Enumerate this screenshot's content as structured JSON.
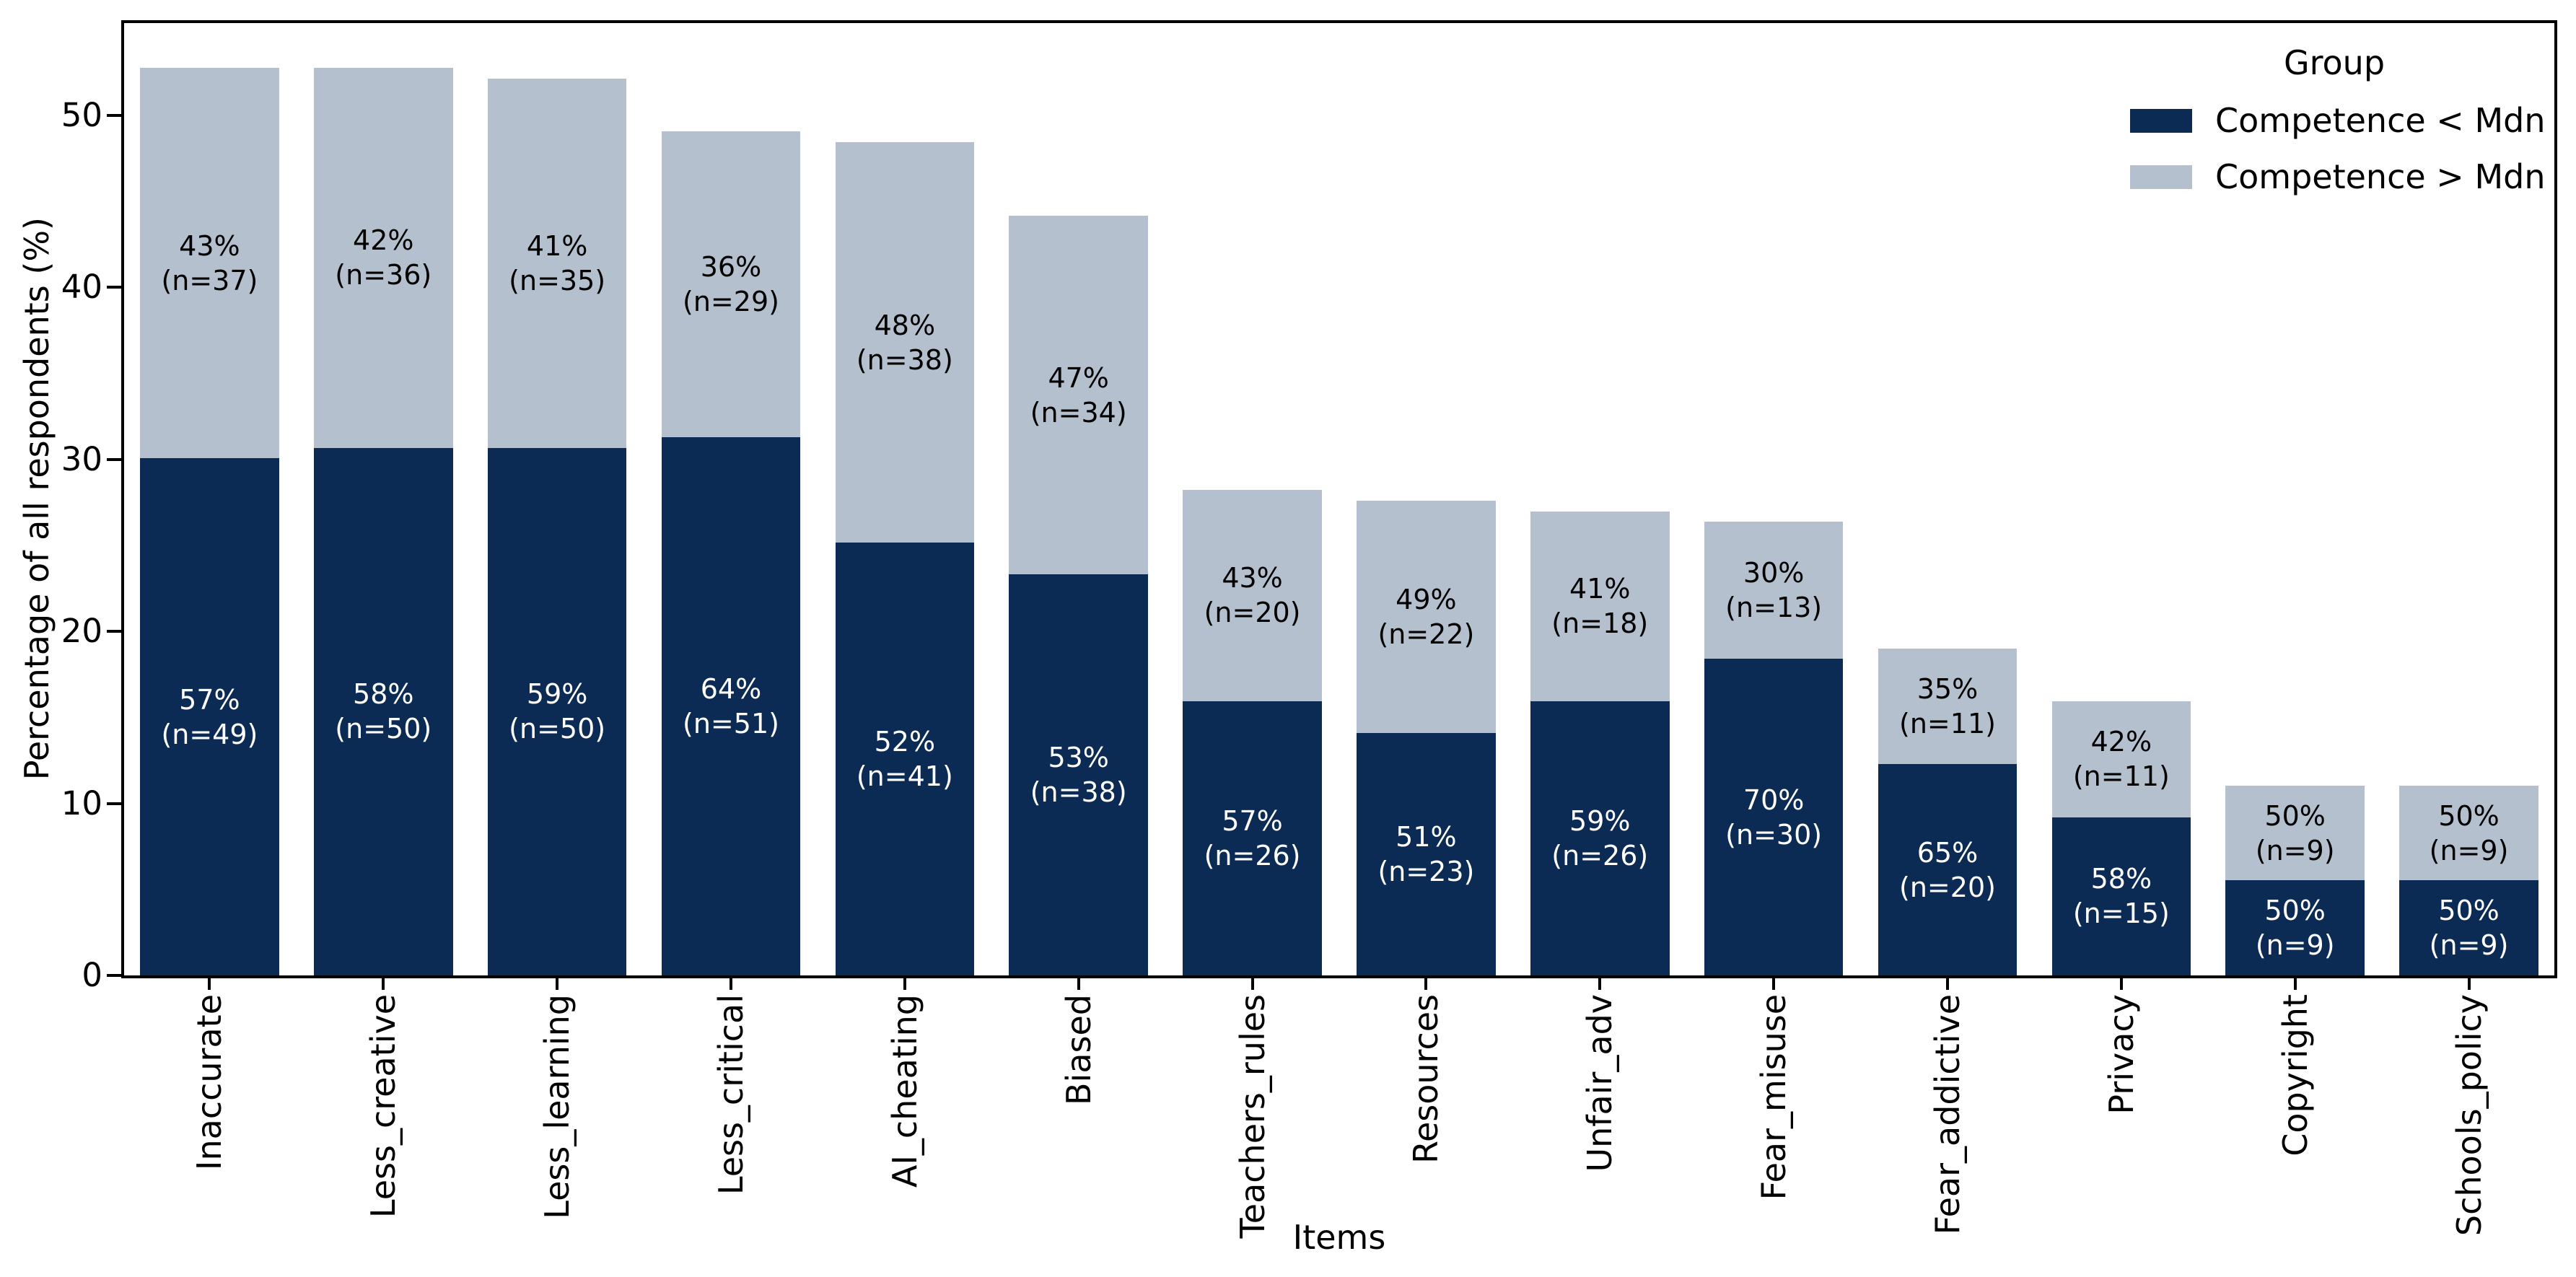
{
  "y_axis": {
    "label": "Percentage of all respondents (%)",
    "ticks": [
      "0",
      "10",
      "20",
      "30",
      "40",
      "50"
    ],
    "tick_values": [
      0,
      10,
      20,
      30,
      40,
      50
    ]
  },
  "x_axis": {
    "label": "Items"
  },
  "legend": {
    "title": "Group",
    "entries": [
      {
        "label": "Competence < Mdn",
        "color": "#0b2b55"
      },
      {
        "label": "Competence > Mdn",
        "color": "#b4c0ce"
      }
    ]
  },
  "colors": {
    "dark_group": "#0b2b55",
    "light_group": "#b4c0ce",
    "axis": "#000000",
    "background": "#ffffff"
  },
  "chart_data": {
    "type": "bar",
    "stacked": true,
    "xlabel": "Items",
    "ylabel": "Percentage of all respondents (%)",
    "ylim": [
      0,
      55.45
    ],
    "grid": false,
    "legend_position": "upper right",
    "legend_title": "Group",
    "categories": [
      "Inaccurate",
      "Less_creative",
      "Less_learning",
      "Less_critical",
      "AI_cheating",
      "Biased",
      "Teachers_rules",
      "Resources",
      "Unfair_adv",
      "Fear_misuse",
      "Fear_addictive",
      "Privacy",
      "Copyright",
      "Schools_policy"
    ],
    "series": [
      {
        "name": "Competence < Mdn",
        "color": "#0b2b55",
        "label_color": "#ffffff",
        "values": [
          30.06,
          30.67,
          30.67,
          31.29,
          25.15,
          23.31,
          15.95,
          14.11,
          15.95,
          18.4,
          12.27,
          9.2,
          5.52,
          5.52
        ],
        "pct_labels": [
          "57%",
          "58%",
          "59%",
          "64%",
          "52%",
          "53%",
          "57%",
          "51%",
          "59%",
          "70%",
          "65%",
          "58%",
          "50%",
          "50%"
        ],
        "n_labels": [
          "(n=49)",
          "(n=50)",
          "(n=50)",
          "(n=51)",
          "(n=41)",
          "(n=38)",
          "(n=26)",
          "(n=23)",
          "(n=26)",
          "(n=30)",
          "(n=20)",
          "(n=15)",
          "(n=9)",
          "(n=9)"
        ]
      },
      {
        "name": "Competence > Mdn",
        "color": "#b4c0ce",
        "label_color": "#000000",
        "values": [
          22.7,
          22.09,
          21.47,
          17.79,
          23.31,
          20.86,
          12.27,
          13.5,
          11.04,
          7.98,
          6.75,
          6.75,
          5.52,
          5.52
        ],
        "pct_labels": [
          "43%",
          "42%",
          "41%",
          "36%",
          "48%",
          "47%",
          "43%",
          "49%",
          "41%",
          "30%",
          "35%",
          "42%",
          "50%",
          "50%"
        ],
        "n_labels": [
          "(n=37)",
          "(n=36)",
          "(n=35)",
          "(n=29)",
          "(n=38)",
          "(n=34)",
          "(n=20)",
          "(n=22)",
          "(n=18)",
          "(n=13)",
          "(n=11)",
          "(n=11)",
          "(n=9)",
          "(n=9)"
        ]
      }
    ]
  }
}
